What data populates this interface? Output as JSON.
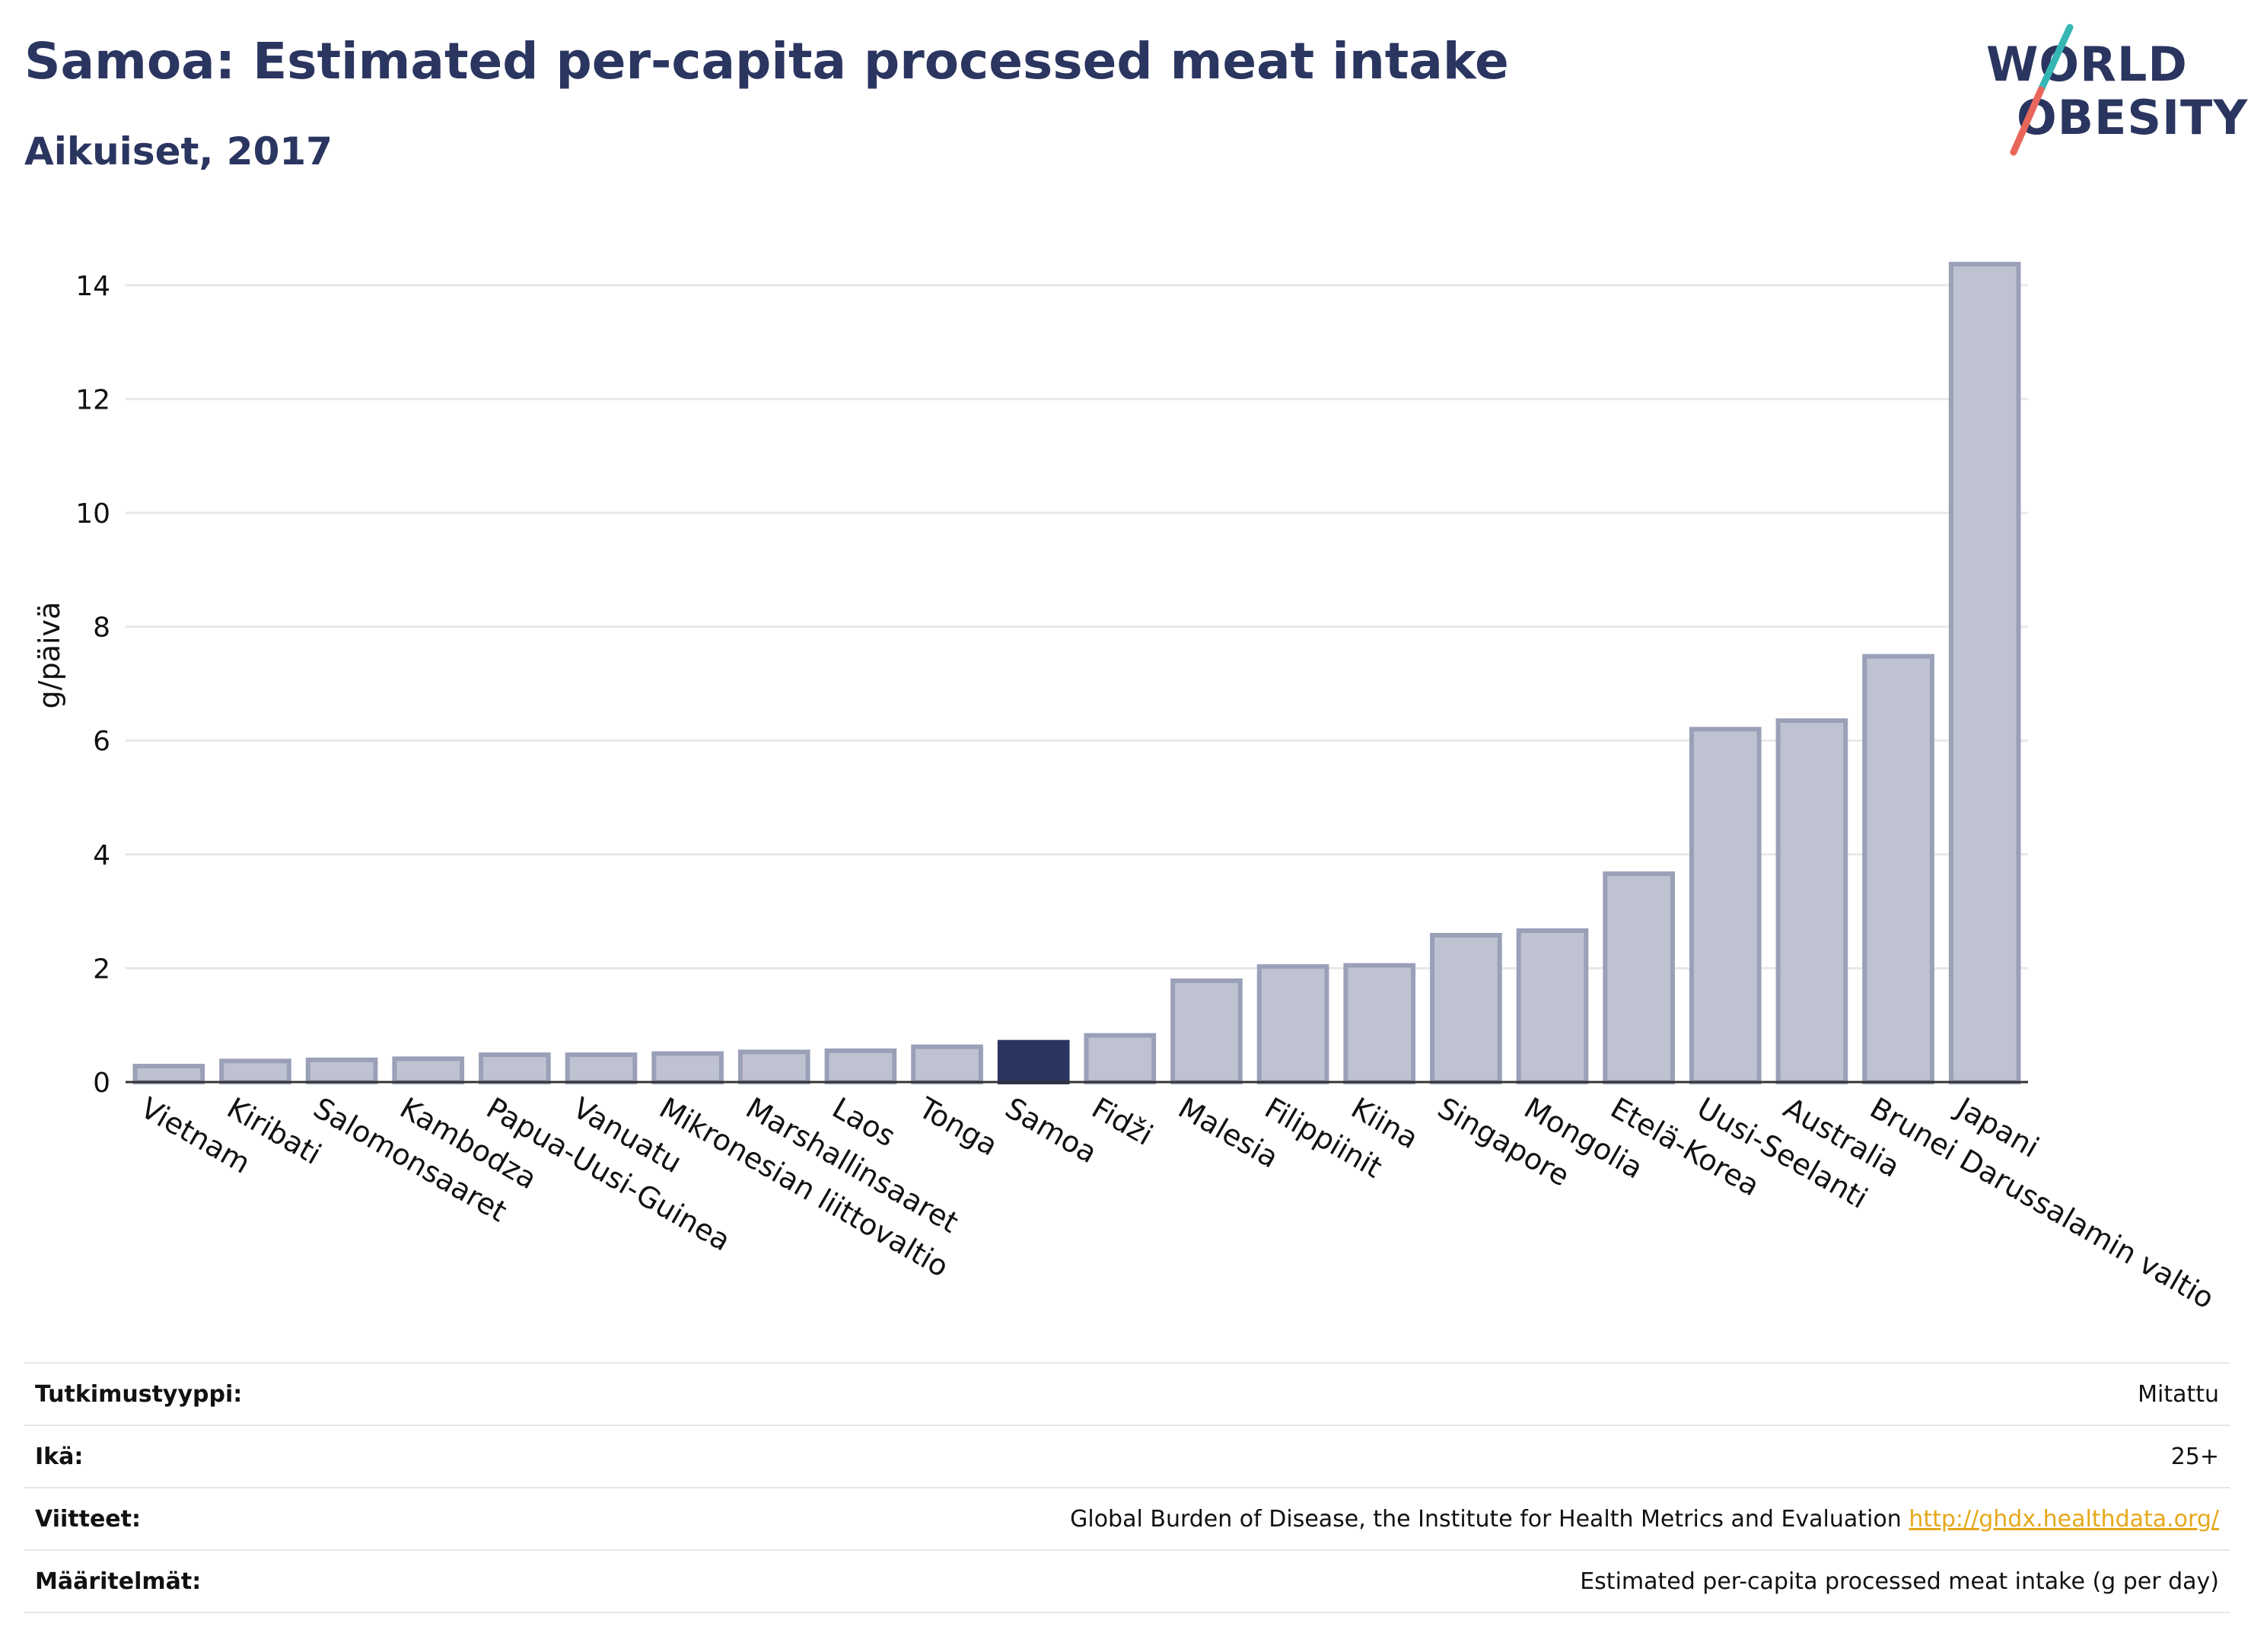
{
  "header": {
    "title": "Samoa: Estimated per-capita processed meat intake",
    "subtitle": "Aikuiset, 2017"
  },
  "logo": {
    "line1": "WORLD",
    "line2": "OBESITY",
    "colors": {
      "text": "#2a3560",
      "slash_top": "#35b6b4",
      "slash_bottom": "#e8675a"
    }
  },
  "chart_data": {
    "type": "bar",
    "ylabel": "g/päivä",
    "xlabel": "",
    "ylim": [
      0,
      15
    ],
    "yticks": [
      0,
      2,
      4,
      6,
      8,
      10,
      12,
      14
    ],
    "grid": true,
    "highlight": "Samoa",
    "colors": {
      "bar": "#bfc2d0",
      "bar_edge": "#9aa0b8",
      "highlight": "#2a3560",
      "grid": "#e8e8e8",
      "axis": "#333333"
    },
    "categories": [
      "Vietnam",
      "Kiribati",
      "Salomonsaaret",
      "Kambodza",
      "Papua-Uusi-Guinea",
      "Vanuatu",
      "Mikronesian liittovaltio",
      "Marshallinsaaret",
      "Laos",
      "Tonga",
      "Samoa",
      "Fidži",
      "Malesia",
      "Filippiinit",
      "Kiina",
      "Singapore",
      "Mongolia",
      "Etelä-Korea",
      "Uusi-Seelanti",
      "Australia",
      "Brunei Darussalamin valtio",
      "Japani"
    ],
    "values": [
      0.28,
      0.37,
      0.39,
      0.41,
      0.48,
      0.48,
      0.5,
      0.53,
      0.55,
      0.62,
      0.7,
      0.82,
      1.78,
      2.03,
      2.05,
      2.58,
      2.66,
      3.66,
      6.2,
      6.35,
      7.48,
      14.37
    ]
  },
  "info": {
    "study_type": {
      "label": "Tutkimustyyppi:",
      "value": "Mitattu"
    },
    "age": {
      "label": "Ikä:",
      "value": "25+"
    },
    "references": {
      "label": "Viitteet:",
      "value": "Global Burden of Disease, the Institute for Health Metrics and Evaluation",
      "link": "http://ghdx.healthdata.org/"
    },
    "definitions": {
      "label": "Määritelmät:",
      "value": "Estimated per-capita processed meat intake (g per day)"
    }
  }
}
